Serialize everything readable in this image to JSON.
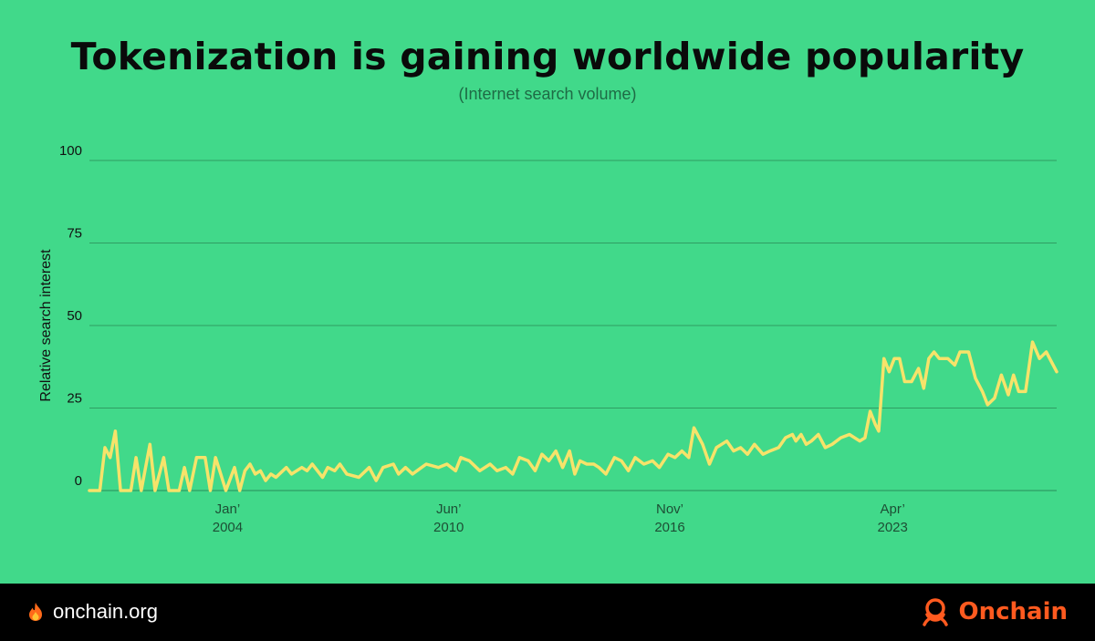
{
  "title": "Tokenization is gaining worldwide popularity",
  "subtitle": "(Internet search volume)",
  "footer": {
    "site": "onchain.org",
    "brand": "Onchain",
    "flame_icon": "fire-icon",
    "logo_icon": "onchain-logo-icon"
  },
  "colors": {
    "background": "#41d98a",
    "line": "#f6e36a",
    "grid": "#2f9d63",
    "footer_bg": "#000000",
    "brand": "#ff5a1f"
  },
  "chart_data": {
    "type": "line",
    "title": "Tokenization is gaining worldwide popularity",
    "subtitle": "(Internet search volume)",
    "ylabel": "Relative search interest",
    "xlabel": "",
    "ylim": [
      0,
      100
    ],
    "yticks": [
      0,
      25,
      50,
      75,
      100
    ],
    "xlim": [
      2000.0,
      2028.0
    ],
    "xticks": [
      {
        "x": 2004.0,
        "label": [
          "Jan’",
          "2004"
        ]
      },
      {
        "x": 2010.4,
        "label": [
          "Jun’",
          "2010"
        ]
      },
      {
        "x": 2016.8,
        "label": [
          "Nov’",
          "2016"
        ]
      },
      {
        "x": 2023.25,
        "label": [
          "Apr’",
          "2023"
        ]
      }
    ],
    "grid": true,
    "series": [
      {
        "points": [
          [
            2000.0,
            0
          ],
          [
            2000.3,
            0
          ],
          [
            2000.45,
            13
          ],
          [
            2000.6,
            10
          ],
          [
            2000.75,
            18
          ],
          [
            2000.9,
            0
          ],
          [
            2001.2,
            0
          ],
          [
            2001.35,
            10
          ],
          [
            2001.5,
            0
          ],
          [
            2001.75,
            14
          ],
          [
            2001.9,
            0
          ],
          [
            2002.15,
            10
          ],
          [
            2002.3,
            0
          ],
          [
            2002.6,
            0
          ],
          [
            2002.75,
            7
          ],
          [
            2002.9,
            0
          ],
          [
            2003.1,
            10
          ],
          [
            2003.35,
            10
          ],
          [
            2003.5,
            0
          ],
          [
            2003.65,
            10
          ],
          [
            2003.8,
            5
          ],
          [
            2003.95,
            0
          ],
          [
            2004.2,
            7
          ],
          [
            2004.35,
            0
          ],
          [
            2004.5,
            6
          ],
          [
            2004.65,
            8
          ],
          [
            2004.8,
            5
          ],
          [
            2004.95,
            6
          ],
          [
            2005.1,
            3
          ],
          [
            2005.25,
            5
          ],
          [
            2005.4,
            4
          ],
          [
            2005.7,
            7
          ],
          [
            2005.85,
            5
          ],
          [
            2006.0,
            6
          ],
          [
            2006.15,
            7
          ],
          [
            2006.3,
            6
          ],
          [
            2006.45,
            8
          ],
          [
            2006.75,
            4
          ],
          [
            2006.9,
            7
          ],
          [
            2007.1,
            6
          ],
          [
            2007.25,
            8
          ],
          [
            2007.45,
            5
          ],
          [
            2007.8,
            4
          ],
          [
            2008.1,
            7
          ],
          [
            2008.3,
            3
          ],
          [
            2008.5,
            7
          ],
          [
            2008.8,
            8
          ],
          [
            2008.95,
            5
          ],
          [
            2009.15,
            7
          ],
          [
            2009.35,
            5
          ],
          [
            2009.75,
            8
          ],
          [
            2010.1,
            7
          ],
          [
            2010.35,
            8
          ],
          [
            2010.6,
            6
          ],
          [
            2010.75,
            10
          ],
          [
            2011.0,
            9
          ],
          [
            2011.3,
            6
          ],
          [
            2011.6,
            8
          ],
          [
            2011.8,
            6
          ],
          [
            2012.05,
            7
          ],
          [
            2012.25,
            5
          ],
          [
            2012.45,
            10
          ],
          [
            2012.7,
            9
          ],
          [
            2012.9,
            6
          ],
          [
            2013.1,
            11
          ],
          [
            2013.3,
            9
          ],
          [
            2013.5,
            12
          ],
          [
            2013.7,
            7
          ],
          [
            2013.9,
            12
          ],
          [
            2014.05,
            5
          ],
          [
            2014.2,
            9
          ],
          [
            2014.4,
            8
          ],
          [
            2014.6,
            8
          ],
          [
            2014.75,
            7
          ],
          [
            2014.95,
            5
          ],
          [
            2015.2,
            10
          ],
          [
            2015.4,
            9
          ],
          [
            2015.6,
            6
          ],
          [
            2015.8,
            10
          ],
          [
            2016.05,
            8
          ],
          [
            2016.3,
            9
          ],
          [
            2016.5,
            7
          ],
          [
            2016.75,
            11
          ],
          [
            2016.95,
            10
          ],
          [
            2017.15,
            12
          ],
          [
            2017.35,
            10
          ],
          [
            2017.5,
            19
          ],
          [
            2017.75,
            14
          ],
          [
            2017.95,
            8
          ],
          [
            2018.15,
            13
          ],
          [
            2018.3,
            14
          ],
          [
            2018.45,
            15
          ],
          [
            2018.65,
            12
          ],
          [
            2018.85,
            13
          ],
          [
            2019.05,
            11
          ],
          [
            2019.25,
            14
          ],
          [
            2019.5,
            11
          ],
          [
            2019.7,
            12
          ],
          [
            2019.95,
            13
          ],
          [
            2020.15,
            16
          ],
          [
            2020.35,
            17
          ],
          [
            2020.45,
            15
          ],
          [
            2020.6,
            17
          ],
          [
            2020.75,
            14
          ],
          [
            2020.9,
            15
          ],
          [
            2021.1,
            17
          ],
          [
            2021.3,
            13
          ],
          [
            2021.5,
            14
          ],
          [
            2021.75,
            16
          ],
          [
            2022.0,
            17
          ],
          [
            2022.3,
            15
          ],
          [
            2022.45,
            16
          ],
          [
            2022.6,
            24
          ],
          [
            2022.75,
            20
          ],
          [
            2022.85,
            18
          ],
          [
            2023.0,
            40
          ],
          [
            2023.15,
            36
          ],
          [
            2023.3,
            40
          ],
          [
            2023.45,
            40
          ],
          [
            2023.6,
            33
          ],
          [
            2023.8,
            33
          ],
          [
            2024.0,
            37
          ],
          [
            2024.15,
            31
          ],
          [
            2024.3,
            40
          ],
          [
            2024.45,
            42
          ],
          [
            2024.6,
            40
          ],
          [
            2024.85,
            40
          ],
          [
            2025.05,
            38
          ],
          [
            2025.2,
            42
          ],
          [
            2025.45,
            42
          ],
          [
            2025.65,
            34
          ],
          [
            2025.85,
            30
          ],
          [
            2026.0,
            26
          ],
          [
            2026.2,
            28
          ],
          [
            2026.4,
            35
          ],
          [
            2026.6,
            29
          ],
          [
            2026.75,
            35
          ],
          [
            2026.9,
            30
          ],
          [
            2027.1,
            30
          ],
          [
            2027.3,
            45
          ],
          [
            2027.5,
            40
          ],
          [
            2027.7,
            42
          ],
          [
            2027.9,
            38
          ],
          [
            2028.0,
            36
          ]
        ]
      }
    ]
  }
}
